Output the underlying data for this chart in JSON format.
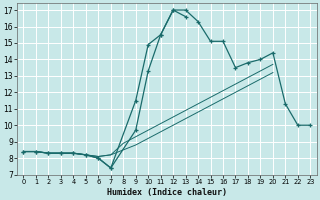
{
  "xlabel": "Humidex (Indice chaleur)",
  "bg_color": "#c8e8e8",
  "grid_color": "#ffffff",
  "line_color": "#1a6b6b",
  "xlim": [
    -0.5,
    23.5
  ],
  "ylim": [
    7,
    17.4
  ],
  "xticks": [
    0,
    1,
    2,
    3,
    4,
    5,
    6,
    7,
    8,
    9,
    10,
    11,
    12,
    13,
    14,
    15,
    16,
    17,
    18,
    19,
    20,
    21,
    22,
    23
  ],
  "yticks": [
    7,
    8,
    9,
    10,
    11,
    12,
    13,
    14,
    15,
    16,
    17
  ],
  "line1_x": [
    0,
    1,
    2,
    3,
    4,
    5,
    6,
    7,
    8,
    9,
    10,
    11,
    12,
    13,
    14,
    15,
    16,
    17,
    18,
    19,
    20
  ],
  "line1_y": [
    8.4,
    8.4,
    8.3,
    8.3,
    8.3,
    8.2,
    8.1,
    8.2,
    8.5,
    8.8,
    9.2,
    9.6,
    10.0,
    10.4,
    10.8,
    11.2,
    11.6,
    12.0,
    12.4,
    12.8,
    13.2
  ],
  "line2_x": [
    0,
    1,
    2,
    3,
    4,
    5,
    6,
    7,
    8,
    9,
    10,
    11,
    12,
    13,
    14,
    15,
    16,
    17,
    18,
    19,
    20
  ],
  "line2_y": [
    8.4,
    8.4,
    8.3,
    8.3,
    8.3,
    8.2,
    8.1,
    8.2,
    8.9,
    9.3,
    9.7,
    10.1,
    10.5,
    10.9,
    11.3,
    11.7,
    12.1,
    12.5,
    12.9,
    13.3,
    13.7
  ],
  "line3_x": [
    0,
    1,
    2,
    3,
    4,
    5,
    6,
    7,
    9,
    10,
    11,
    12,
    13,
    14,
    15,
    16,
    17,
    18,
    19,
    20,
    21,
    22,
    23
  ],
  "line3_y": [
    8.4,
    8.4,
    8.3,
    8.3,
    8.3,
    8.2,
    8.0,
    7.4,
    11.5,
    14.9,
    15.5,
    17.0,
    17.0,
    16.3,
    15.1,
    15.1,
    13.5,
    13.8,
    14.0,
    14.4,
    11.3,
    10.0,
    10.0
  ],
  "line4_x": [
    0,
    1,
    2,
    3,
    4,
    5,
    6,
    7,
    9,
    10,
    11,
    12,
    13
  ],
  "line4_y": [
    8.4,
    8.4,
    8.3,
    8.3,
    8.3,
    8.2,
    8.0,
    7.4,
    9.7,
    13.3,
    15.5,
    17.0,
    16.6
  ]
}
